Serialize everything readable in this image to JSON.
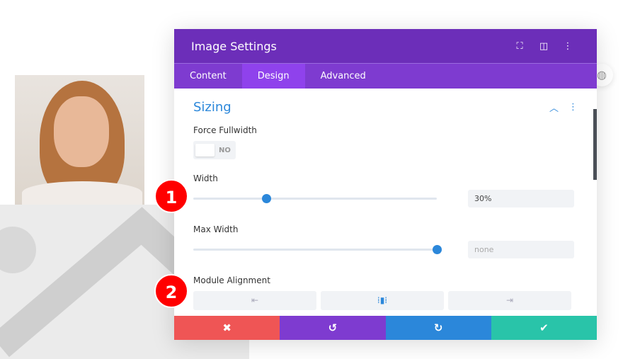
{
  "modal": {
    "title": "Image Settings",
    "icons": [
      "focus-icon",
      "split-view-icon",
      "more-icon"
    ]
  },
  "tabs": [
    {
      "label": "Content"
    },
    {
      "label": "Design",
      "active": true
    },
    {
      "label": "Advanced"
    }
  ],
  "section": {
    "title": "Sizing"
  },
  "force_fullwidth": {
    "label": "Force Fullwidth",
    "value": "NO"
  },
  "width": {
    "label": "Width",
    "value": "30%",
    "slider_percent": 30
  },
  "max_width": {
    "label": "Max Width",
    "placeholder": "none",
    "slider_percent": 100
  },
  "alignment": {
    "label": "Module Alignment",
    "options": [
      "left",
      "center",
      "right"
    ],
    "selected": "center"
  },
  "footer": {
    "cancel": "✖",
    "undo": "↺",
    "redo": "↻",
    "save": "✔"
  },
  "badges": [
    "1",
    "2"
  ],
  "colors": {
    "header": "#6c2eb9",
    "tabs": "#7e3bd0",
    "accent": "#2b87da",
    "cancel": "#ef5555",
    "undo": "#7e3bd0",
    "redo": "#2b87da",
    "save": "#29c4a9"
  }
}
